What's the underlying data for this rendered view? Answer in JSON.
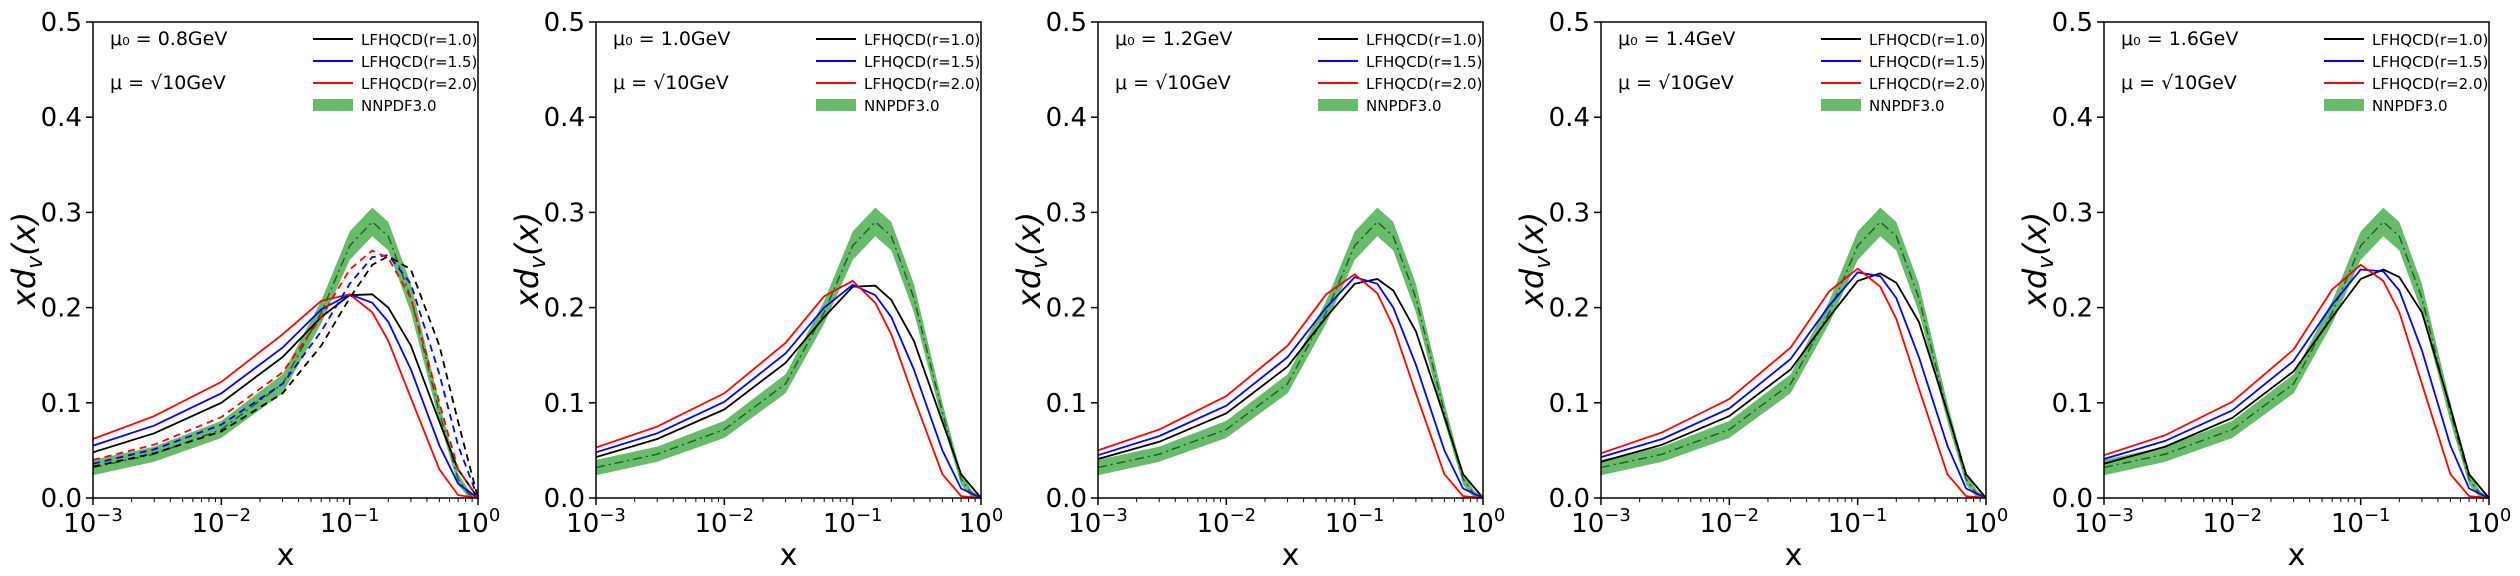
{
  "figure": {
    "panels": [
      {
        "mu0_label": "μ₀ = 0.8GeV",
        "mu_label": "μ = √10GeV",
        "has_dashed": true
      },
      {
        "mu0_label": "μ₀ = 1.0GeV",
        "mu_label": "μ = √10GeV",
        "has_dashed": false
      },
      {
        "mu0_label": "μ₀ = 1.2GeV",
        "mu_label": "μ = √10GeV",
        "has_dashed": false
      },
      {
        "mu0_label": "μ₀ = 1.4GeV",
        "mu_label": "μ = √10GeV",
        "has_dashed": false
      },
      {
        "mu0_label": "μ₀ = 1.6GeV",
        "mu_label": "μ = √10GeV",
        "has_dashed": false
      }
    ]
  },
  "chart_data": [
    {
      "type": "line",
      "title": "",
      "xlabel": "x",
      "ylabel": "xd_v(x)",
      "xscale": "log",
      "xlim": [
        0.001,
        1
      ],
      "ylim": [
        0,
        0.5
      ],
      "xticks": [
        "10^-3",
        "10^-2",
        "10^-1",
        "10^0"
      ],
      "yticks": [
        "0.0",
        "0.1",
        "0.2",
        "0.3",
        "0.4",
        "0.5"
      ],
      "legend_position": "top-right",
      "series": [
        {
          "name": "LFHQCD(r=1.0)",
          "color": "#000000",
          "style": "solid",
          "x": [
            0.001,
            0.003,
            0.01,
            0.03,
            0.06,
            0.1,
            0.15,
            0.2,
            0.3,
            0.5,
            0.7,
            1.0
          ],
          "y": [
            0.048,
            0.068,
            0.1,
            0.148,
            0.19,
            0.213,
            0.214,
            0.2,
            0.16,
            0.08,
            0.03,
            0.0
          ]
        },
        {
          "name": "LFHQCD(r=1.5)",
          "color": "#0000ff",
          "style": "solid",
          "x": [
            0.001,
            0.003,
            0.01,
            0.03,
            0.06,
            0.1,
            0.15,
            0.2,
            0.3,
            0.5,
            0.7,
            1.0
          ],
          "y": [
            0.055,
            0.076,
            0.11,
            0.158,
            0.198,
            0.214,
            0.205,
            0.185,
            0.135,
            0.055,
            0.015,
            0.0
          ]
        },
        {
          "name": "LFHQCD(r=2.0)",
          "color": "#ff0000",
          "style": "solid",
          "x": [
            0.001,
            0.003,
            0.01,
            0.03,
            0.06,
            0.1,
            0.15,
            0.2,
            0.3,
            0.5,
            0.7,
            1.0
          ],
          "y": [
            0.062,
            0.086,
            0.122,
            0.172,
            0.207,
            0.214,
            0.195,
            0.165,
            0.105,
            0.03,
            0.003,
            0.0
          ]
        },
        {
          "name": "",
          "color": "#000000",
          "style": "dashed",
          "x": [
            0.001,
            0.003,
            0.01,
            0.03,
            0.06,
            0.1,
            0.15,
            0.2,
            0.3,
            0.5,
            0.7,
            1.0
          ],
          "y": [
            0.033,
            0.047,
            0.07,
            0.11,
            0.16,
            0.21,
            0.245,
            0.254,
            0.24,
            0.16,
            0.08,
            0.0
          ]
        },
        {
          "name": "",
          "color": "#0000ff",
          "style": "dashed",
          "x": [
            0.001,
            0.003,
            0.01,
            0.03,
            0.06,
            0.1,
            0.15,
            0.2,
            0.3,
            0.5,
            0.7,
            1.0
          ],
          "y": [
            0.036,
            0.051,
            0.077,
            0.12,
            0.175,
            0.225,
            0.253,
            0.255,
            0.225,
            0.13,
            0.055,
            0.0
          ]
        },
        {
          "name": "",
          "color": "#ff0000",
          "style": "dashed",
          "x": [
            0.001,
            0.003,
            0.01,
            0.03,
            0.06,
            0.1,
            0.15,
            0.2,
            0.3,
            0.5,
            0.7,
            1.0
          ],
          "y": [
            0.04,
            0.056,
            0.085,
            0.132,
            0.19,
            0.24,
            0.26,
            0.252,
            0.21,
            0.1,
            0.03,
            0.0
          ]
        },
        {
          "name": "NNPDF3.0",
          "color": "#4caf50",
          "style": "band",
          "x": [
            0.001,
            0.003,
            0.01,
            0.03,
            0.06,
            0.1,
            0.15,
            0.2,
            0.3,
            0.5,
            0.7,
            0.85,
            1.0
          ],
          "y": [
            0.032,
            0.046,
            0.072,
            0.12,
            0.195,
            0.265,
            0.29,
            0.275,
            0.21,
            0.09,
            0.02,
            0.004,
            0.0
          ],
          "y_low": [
            0.024,
            0.038,
            0.063,
            0.11,
            0.183,
            0.25,
            0.275,
            0.26,
            0.195,
            0.08,
            0.014,
            0.0,
            0.0
          ],
          "y_high": [
            0.04,
            0.054,
            0.081,
            0.13,
            0.207,
            0.28,
            0.305,
            0.29,
            0.225,
            0.1,
            0.026,
            0.008,
            0.0
          ]
        }
      ]
    },
    {
      "type": "line",
      "title": "",
      "xlabel": "x",
      "ylabel": "xd_v(x)",
      "xscale": "log",
      "xlim": [
        0.001,
        1
      ],
      "ylim": [
        0,
        0.5
      ],
      "xticks": [
        "10^-3",
        "10^-2",
        "10^-1",
        "10^0"
      ],
      "yticks": [
        "0.0",
        "0.1",
        "0.2",
        "0.3",
        "0.4",
        "0.5"
      ],
      "legend_position": "top-right",
      "series": [
        {
          "name": "LFHQCD(r=1.0)",
          "color": "#000000",
          "style": "solid",
          "x": [
            0.001,
            0.003,
            0.01,
            0.03,
            0.06,
            0.1,
            0.15,
            0.2,
            0.3,
            0.5,
            0.7,
            1.0
          ],
          "y": [
            0.043,
            0.062,
            0.093,
            0.142,
            0.19,
            0.222,
            0.223,
            0.208,
            0.165,
            0.08,
            0.025,
            0.0
          ]
        },
        {
          "name": "LFHQCD(r=1.5)",
          "color": "#0000ff",
          "style": "solid",
          "x": [
            0.001,
            0.003,
            0.01,
            0.03,
            0.06,
            0.1,
            0.15,
            0.2,
            0.3,
            0.5,
            0.7,
            1.0
          ],
          "y": [
            0.048,
            0.068,
            0.101,
            0.152,
            0.2,
            0.224,
            0.213,
            0.19,
            0.135,
            0.05,
            0.01,
            0.0
          ]
        },
        {
          "name": "LFHQCD(r=2.0)",
          "color": "#ff0000",
          "style": "solid",
          "x": [
            0.001,
            0.003,
            0.01,
            0.03,
            0.06,
            0.1,
            0.15,
            0.2,
            0.3,
            0.5,
            0.7,
            1.0
          ],
          "y": [
            0.053,
            0.075,
            0.11,
            0.163,
            0.212,
            0.228,
            0.205,
            0.172,
            0.105,
            0.025,
            0.002,
            0.0
          ]
        },
        {
          "name": "NNPDF3.0",
          "color": "#4caf50",
          "style": "band",
          "x": [
            0.001,
            0.003,
            0.01,
            0.03,
            0.06,
            0.1,
            0.15,
            0.2,
            0.3,
            0.5,
            0.7,
            0.85,
            1.0
          ],
          "y": [
            0.032,
            0.046,
            0.072,
            0.12,
            0.195,
            0.265,
            0.29,
            0.275,
            0.21,
            0.09,
            0.02,
            0.004,
            0.0
          ],
          "y_low": [
            0.024,
            0.038,
            0.063,
            0.11,
            0.183,
            0.25,
            0.275,
            0.26,
            0.195,
            0.08,
            0.014,
            0.0,
            0.0
          ],
          "y_high": [
            0.04,
            0.054,
            0.081,
            0.13,
            0.207,
            0.28,
            0.305,
            0.29,
            0.225,
            0.1,
            0.026,
            0.008,
            0.0
          ]
        }
      ]
    },
    {
      "type": "line",
      "title": "",
      "xlabel": "x",
      "ylabel": "xd_v(x)",
      "xscale": "log",
      "xlim": [
        0.001,
        1
      ],
      "ylim": [
        0,
        0.5
      ],
      "xticks": [
        "10^-3",
        "10^-2",
        "10^-1",
        "10^0"
      ],
      "yticks": [
        "0.0",
        "0.1",
        "0.2",
        "0.3",
        "0.4",
        "0.5"
      ],
      "legend_position": "top-right",
      "series": [
        {
          "name": "LFHQCD(r=1.0)",
          "color": "#000000",
          "style": "solid",
          "x": [
            0.001,
            0.003,
            0.01,
            0.03,
            0.06,
            0.1,
            0.15,
            0.2,
            0.3,
            0.5,
            0.7,
            1.0
          ],
          "y": [
            0.041,
            0.059,
            0.089,
            0.138,
            0.19,
            0.225,
            0.23,
            0.218,
            0.175,
            0.085,
            0.025,
            0.0
          ]
        },
        {
          "name": "LFHQCD(r=1.5)",
          "color": "#0000ff",
          "style": "solid",
          "x": [
            0.001,
            0.003,
            0.01,
            0.03,
            0.06,
            0.1,
            0.15,
            0.2,
            0.3,
            0.5,
            0.7,
            1.0
          ],
          "y": [
            0.045,
            0.065,
            0.097,
            0.148,
            0.2,
            0.232,
            0.225,
            0.2,
            0.14,
            0.05,
            0.01,
            0.0
          ]
        },
        {
          "name": "LFHQCD(r=2.0)",
          "color": "#ff0000",
          "style": "solid",
          "x": [
            0.001,
            0.003,
            0.01,
            0.03,
            0.06,
            0.1,
            0.15,
            0.2,
            0.3,
            0.5,
            0.7,
            1.0
          ],
          "y": [
            0.05,
            0.072,
            0.107,
            0.16,
            0.214,
            0.235,
            0.215,
            0.18,
            0.11,
            0.025,
            0.002,
            0.0
          ]
        },
        {
          "name": "NNPDF3.0",
          "color": "#4caf50",
          "style": "band",
          "x": [
            0.001,
            0.003,
            0.01,
            0.03,
            0.06,
            0.1,
            0.15,
            0.2,
            0.3,
            0.5,
            0.7,
            0.85,
            1.0
          ],
          "y": [
            0.032,
            0.046,
            0.072,
            0.12,
            0.195,
            0.265,
            0.29,
            0.275,
            0.21,
            0.09,
            0.02,
            0.004,
            0.0
          ],
          "y_low": [
            0.024,
            0.038,
            0.063,
            0.11,
            0.183,
            0.25,
            0.275,
            0.26,
            0.195,
            0.08,
            0.014,
            0.0,
            0.0
          ],
          "y_high": [
            0.04,
            0.054,
            0.081,
            0.13,
            0.207,
            0.28,
            0.305,
            0.29,
            0.225,
            0.1,
            0.026,
            0.008,
            0.0
          ]
        }
      ]
    },
    {
      "type": "line",
      "title": "",
      "xlabel": "x",
      "ylabel": "xd_v(x)",
      "xscale": "log",
      "xlim": [
        0.001,
        1
      ],
      "ylim": [
        0,
        0.5
      ],
      "xticks": [
        "10^-3",
        "10^-2",
        "10^-1",
        "10^0"
      ],
      "yticks": [
        "0.0",
        "0.1",
        "0.2",
        "0.3",
        "0.4",
        "0.5"
      ],
      "legend_position": "top-right",
      "series": [
        {
          "name": "LFHQCD(r=1.0)",
          "color": "#000000",
          "style": "solid",
          "x": [
            0.001,
            0.003,
            0.01,
            0.03,
            0.06,
            0.1,
            0.15,
            0.2,
            0.3,
            0.5,
            0.7,
            1.0
          ],
          "y": [
            0.038,
            0.056,
            0.086,
            0.135,
            0.19,
            0.228,
            0.236,
            0.226,
            0.185,
            0.09,
            0.025,
            0.0
          ]
        },
        {
          "name": "LFHQCD(r=1.5)",
          "color": "#0000ff",
          "style": "solid",
          "x": [
            0.001,
            0.003,
            0.01,
            0.03,
            0.06,
            0.1,
            0.15,
            0.2,
            0.3,
            0.5,
            0.7,
            1.0
          ],
          "y": [
            0.043,
            0.062,
            0.094,
            0.146,
            0.202,
            0.237,
            0.233,
            0.21,
            0.148,
            0.055,
            0.01,
            0.0
          ]
        },
        {
          "name": "LFHQCD(r=2.0)",
          "color": "#ff0000",
          "style": "solid",
          "x": [
            0.001,
            0.003,
            0.01,
            0.03,
            0.06,
            0.1,
            0.15,
            0.2,
            0.3,
            0.5,
            0.7,
            1.0
          ],
          "y": [
            0.047,
            0.069,
            0.104,
            0.158,
            0.217,
            0.241,
            0.222,
            0.188,
            0.115,
            0.025,
            0.002,
            0.0
          ]
        },
        {
          "name": "NNPDF3.0",
          "color": "#4caf50",
          "style": "band",
          "x": [
            0.001,
            0.003,
            0.01,
            0.03,
            0.06,
            0.1,
            0.15,
            0.2,
            0.3,
            0.5,
            0.7,
            0.85,
            1.0
          ],
          "y": [
            0.032,
            0.046,
            0.072,
            0.12,
            0.195,
            0.265,
            0.29,
            0.275,
            0.21,
            0.09,
            0.02,
            0.004,
            0.0
          ],
          "y_low": [
            0.024,
            0.038,
            0.063,
            0.11,
            0.183,
            0.25,
            0.275,
            0.26,
            0.195,
            0.08,
            0.014,
            0.0,
            0.0
          ],
          "y_high": [
            0.04,
            0.054,
            0.081,
            0.13,
            0.207,
            0.28,
            0.305,
            0.29,
            0.225,
            0.1,
            0.026,
            0.008,
            0.0
          ]
        }
      ]
    },
    {
      "type": "line",
      "title": "",
      "xlabel": "x",
      "ylabel": "xd_v(x)",
      "xscale": "log",
      "xlim": [
        0.001,
        1
      ],
      "ylim": [
        0,
        0.5
      ],
      "xticks": [
        "10^-3",
        "10^-2",
        "10^-1",
        "10^0"
      ],
      "yticks": [
        "0.0",
        "0.1",
        "0.2",
        "0.3",
        "0.4",
        "0.5"
      ],
      "legend_position": "top-right",
      "series": [
        {
          "name": "LFHQCD(r=1.0)",
          "color": "#000000",
          "style": "solid",
          "x": [
            0.001,
            0.003,
            0.01,
            0.03,
            0.06,
            0.1,
            0.15,
            0.2,
            0.3,
            0.5,
            0.7,
            1.0
          ],
          "y": [
            0.036,
            0.054,
            0.084,
            0.133,
            0.19,
            0.23,
            0.24,
            0.232,
            0.195,
            0.095,
            0.025,
            0.0
          ]
        },
        {
          "name": "LFHQCD(r=1.5)",
          "color": "#0000ff",
          "style": "solid",
          "x": [
            0.001,
            0.003,
            0.01,
            0.03,
            0.06,
            0.1,
            0.15,
            0.2,
            0.3,
            0.5,
            0.7,
            1.0
          ],
          "y": [
            0.041,
            0.06,
            0.092,
            0.144,
            0.203,
            0.24,
            0.238,
            0.218,
            0.155,
            0.055,
            0.01,
            0.0
          ]
        },
        {
          "name": "LFHQCD(r=2.0)",
          "color": "#ff0000",
          "style": "solid",
          "x": [
            0.001,
            0.003,
            0.01,
            0.03,
            0.06,
            0.1,
            0.15,
            0.2,
            0.3,
            0.5,
            0.7,
            1.0
          ],
          "y": [
            0.045,
            0.066,
            0.101,
            0.156,
            0.219,
            0.245,
            0.228,
            0.195,
            0.12,
            0.025,
            0.002,
            0.0
          ]
        },
        {
          "name": "NNPDF3.0",
          "color": "#4caf50",
          "style": "band",
          "x": [
            0.001,
            0.003,
            0.01,
            0.03,
            0.06,
            0.1,
            0.15,
            0.2,
            0.3,
            0.5,
            0.7,
            0.85,
            1.0
          ],
          "y": [
            0.032,
            0.046,
            0.072,
            0.12,
            0.195,
            0.265,
            0.29,
            0.275,
            0.21,
            0.09,
            0.02,
            0.004,
            0.0
          ],
          "y_low": [
            0.024,
            0.038,
            0.063,
            0.11,
            0.183,
            0.25,
            0.275,
            0.26,
            0.195,
            0.08,
            0.014,
            0.0,
            0.0
          ],
          "y_high": [
            0.04,
            0.054,
            0.081,
            0.13,
            0.207,
            0.28,
            0.305,
            0.29,
            0.225,
            0.1,
            0.026,
            0.008,
            0.0
          ]
        }
      ]
    }
  ]
}
